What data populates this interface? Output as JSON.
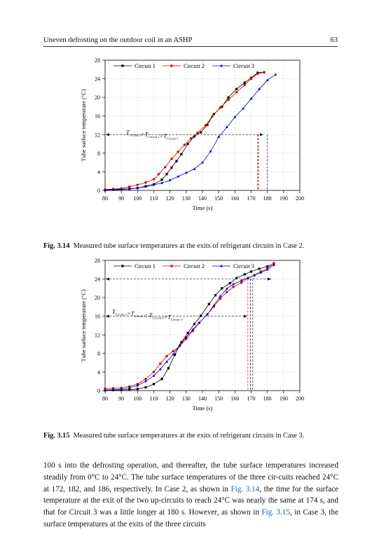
{
  "header": {
    "title": "Uneven defrosting on the outdoor coil in an ASHP",
    "page_number": "63"
  },
  "figures": [
    {
      "caption_label": "Fig. 3.14",
      "caption_text": "Measured tube surface temperatures at the exits of refrigerant circuits in Case 2.",
      "annotation": {
        "parts": [
          {
            "t": "T",
            "sub": "Circuit 2"
          },
          {
            "t": ">T",
            "sub": "Circuit 1"
          },
          {
            "t": ">T",
            "sub": "Circuit 3"
          }
        ]
      }
    },
    {
      "caption_label": "Fig. 3.15",
      "caption_text": "Measured tube surface temperatures at the exits of refrigerant circuits in Case 3.",
      "annotation": {
        "parts": [
          {
            "t": "T",
            "sub": "Circuit 2"
          },
          {
            "t": ">T",
            "sub": "Circuit 1"
          },
          {
            "t": "; T",
            "sub": "Circuit 2"
          },
          {
            "t": ">T",
            "sub": "Circuit 3"
          }
        ]
      }
    }
  ],
  "chart_data": [
    {
      "type": "line",
      "title": "",
      "xlabel": "Time (s)",
      "ylabel": "Tube surface temperature (°C)",
      "xlim": [
        80,
        200
      ],
      "ylim": [
        0,
        28
      ],
      "xticks": [
        80,
        90,
        100,
        110,
        120,
        130,
        140,
        150,
        160,
        170,
        180,
        190,
        200
      ],
      "yticks": [
        0,
        4,
        8,
        12,
        16,
        20,
        24,
        28
      ],
      "reference_line_y": 12,
      "vertical_markers": [
        {
          "x": 174,
          "color": "#cc0000"
        },
        {
          "x": 174.5,
          "color": "#000000"
        },
        {
          "x": 180,
          "color": "#0000cc"
        }
      ],
      "legend": "top-left",
      "grid": true,
      "series": [
        {
          "name": "Circuit 1",
          "color": "#000000",
          "marker": "square",
          "x": [
            80,
            85,
            90,
            95,
            100,
            105,
            110,
            115,
            118,
            121,
            124,
            127,
            131,
            135,
            139,
            143,
            147,
            152,
            156,
            161,
            166,
            170,
            174,
            178
          ],
          "y": [
            0.1,
            0.2,
            0.25,
            0.35,
            0.5,
            0.9,
            1.3,
            2.3,
            3.5,
            4.9,
            6.3,
            7.8,
            10,
            11.6,
            12.5,
            14.1,
            16.4,
            18,
            20,
            21.8,
            23.2,
            24.2,
            25.3,
            25.4
          ]
        },
        {
          "name": "Circuit 2",
          "color": "#cc0000",
          "marker": "circle",
          "x": [
            80,
            85,
            90,
            95,
            100,
            105,
            110,
            113,
            117,
            121,
            125,
            129,
            133,
            137,
            142,
            146,
            151,
            156,
            161,
            166,
            170,
            174,
            178
          ],
          "y": [
            0.2,
            0.3,
            0.4,
            0.8,
            1.2,
            1.7,
            2.4,
            3.5,
            5,
            6.8,
            8.3,
            9.8,
            11.2,
            12.4,
            14,
            15.9,
            17.8,
            19.5,
            21.1,
            22.7,
            24,
            25.1,
            25.4
          ]
        },
        {
          "name": "Circuit 3",
          "color": "#0000cc",
          "marker": "triangle",
          "x": [
            80,
            85,
            90,
            95,
            100,
            105,
            110,
            115,
            120,
            125,
            130,
            135,
            140,
            145,
            150,
            155,
            160,
            165,
            170,
            175,
            180,
            185
          ],
          "y": [
            0,
            0.1,
            0.15,
            0.3,
            0.5,
            0.8,
            1.2,
            1.6,
            2.2,
            3,
            3.8,
            4.6,
            6,
            8.4,
            11.5,
            13.6,
            15.8,
            17.6,
            19.7,
            21.8,
            23.7,
            24.9
          ]
        }
      ]
    },
    {
      "type": "line",
      "title": "",
      "xlabel": "Time (s)",
      "ylabel": "Tube surface temperature (°C)",
      "xlim": [
        80,
        200
      ],
      "ylim": [
        0,
        28
      ],
      "xticks": [
        80,
        90,
        100,
        110,
        120,
        130,
        140,
        150,
        160,
        170,
        180,
        190,
        200
      ],
      "yticks": [
        0,
        4,
        8,
        12,
        16,
        20,
        24,
        28
      ],
      "reference_line_y": 24,
      "reference_line_y2": 16,
      "vertical_markers": [
        {
          "x": 168,
          "color": "#cc0000"
        },
        {
          "x": 169.5,
          "color": "#000000"
        },
        {
          "x": 171,
          "color": "#0000cc"
        }
      ],
      "legend": "top-left",
      "grid": true,
      "series": [
        {
          "name": "Circuit 1",
          "color": "#000000",
          "marker": "square",
          "x": [
            80,
            85,
            90,
            95,
            100,
            105,
            110,
            115,
            119,
            123,
            127,
            131,
            135,
            139,
            144,
            148,
            152,
            157,
            161,
            166,
            170,
            175,
            180,
            184
          ],
          "y": [
            0.05,
            0.1,
            0.15,
            0.2,
            0.35,
            0.7,
            1.4,
            2.5,
            4.8,
            7.7,
            10.4,
            12.4,
            14.3,
            16.1,
            18.6,
            20.5,
            22,
            23.1,
            24.2,
            25,
            25.6,
            26.2,
            26.7,
            27.3
          ]
        },
        {
          "name": "Circuit 2",
          "color": "#cc0000",
          "marker": "circle",
          "x": [
            80,
            85,
            90,
            95,
            100,
            105,
            110,
            114,
            118,
            122,
            126,
            130,
            134,
            138,
            143,
            147,
            151,
            155,
            159,
            164,
            168,
            172,
            176,
            180,
            184
          ],
          "y": [
            0.4,
            0.5,
            0.6,
            0.9,
            1.4,
            2.5,
            4,
            5.8,
            7.4,
            8.5,
            9.6,
            11.1,
            12.8,
            14.6,
            16.4,
            18.1,
            19.8,
            21.2,
            22.3,
            23.2,
            24.2,
            24.8,
            25.6,
            26.3,
            27.4
          ]
        },
        {
          "name": "Circuit 3",
          "color": "#0000cc",
          "marker": "triangle",
          "x": [
            80,
            85,
            90,
            95,
            100,
            105,
            110,
            114,
            118,
            122,
            126,
            130,
            134,
            138,
            143,
            147,
            151,
            155,
            159,
            164,
            168,
            172,
            176,
            180,
            184
          ],
          "y": [
            0.1,
            0.2,
            0.3,
            0.6,
            1.1,
            2,
            3.2,
            4.6,
            6.2,
            7.8,
            9.8,
            11.5,
            13.1,
            14.6,
            16.4,
            18.3,
            20.3,
            21.9,
            22.9,
            23.7,
            24.2,
            24.8,
            25.4,
            26,
            27
          ]
        }
      ]
    }
  ],
  "body": {
    "p1": "100 s into the defrosting operation, and thereafter, the tube surface temperatures increased steadily from 0°C to 24°C. The tube surface temperatures of the three cir-cuits reached 24°C at 172, 182, and 186, respectively. In Case 2, as shown in ",
    "ref1": "Fig. 3.14",
    "p2": ", the time for the surface temperature at the exit of the two up-circuits to reach 24°C was nearly the same at 174 s, and that for Circuit 3 was a little longer at 180 s. However, as shown in ",
    "ref2": "Fig. 3.15",
    "p3": ", in Case 3, the surface temperatures at the exits of the three circuits"
  }
}
